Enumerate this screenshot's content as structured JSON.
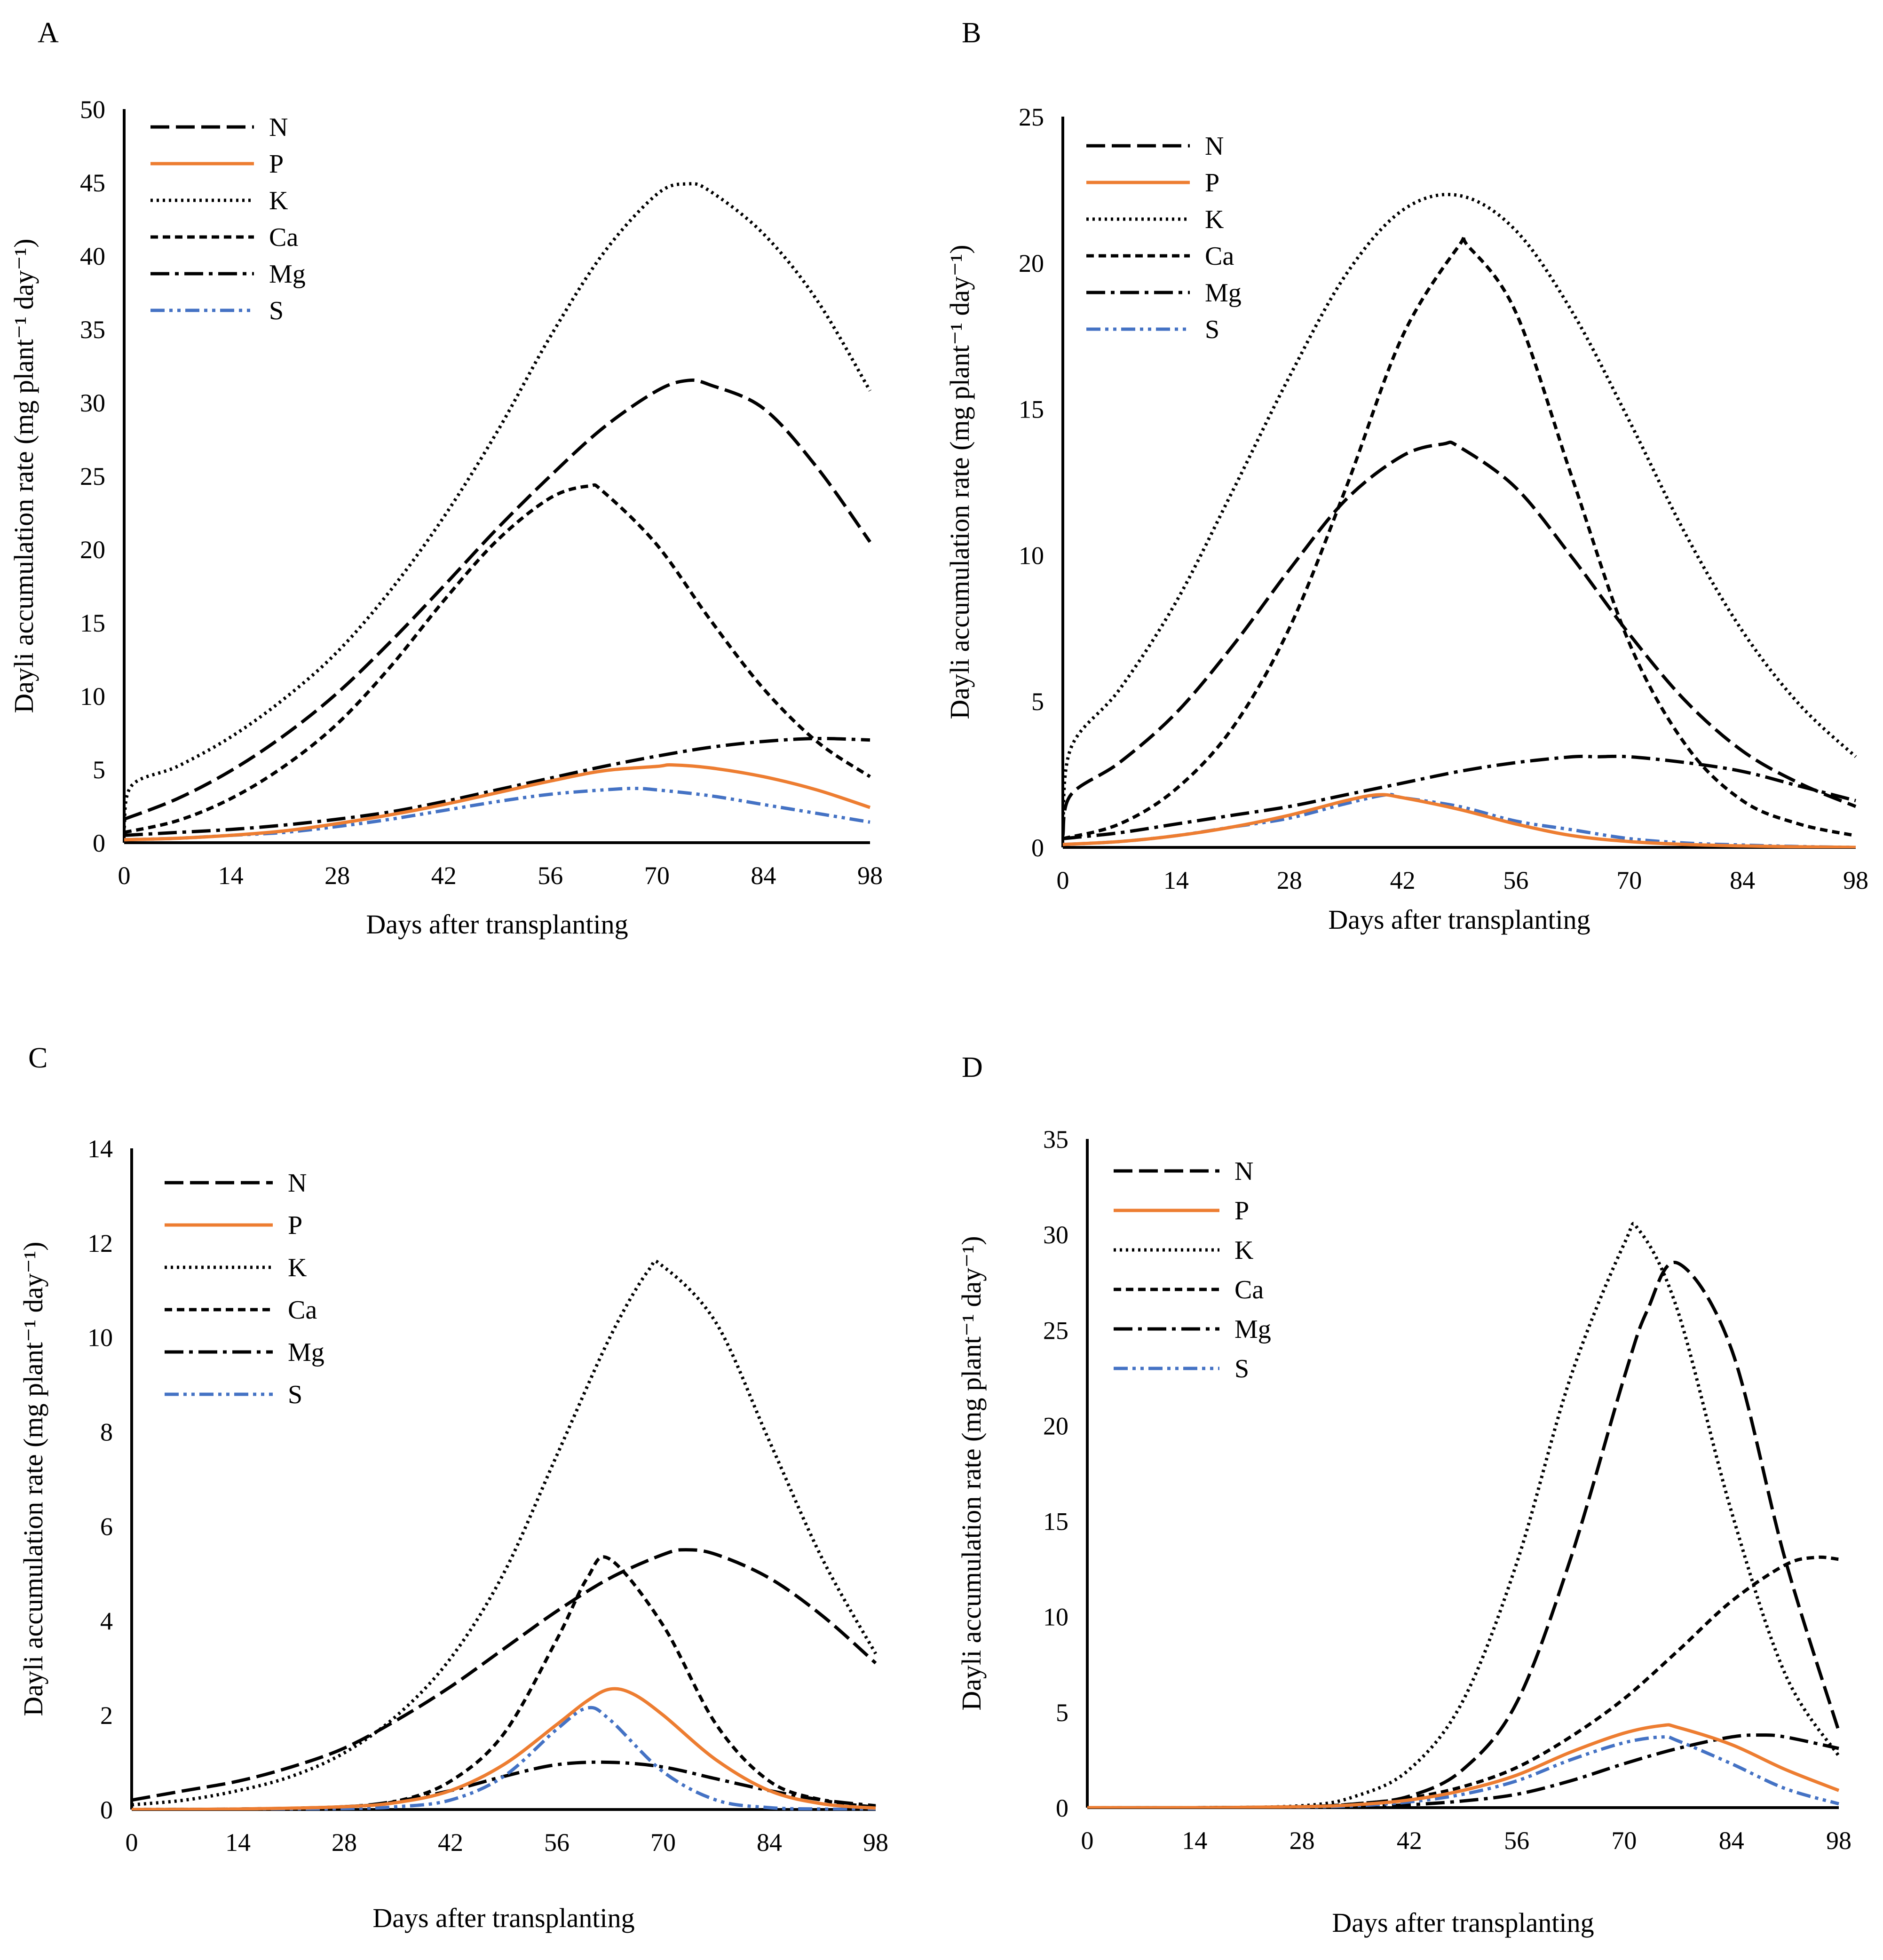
{
  "figure": {
    "panels": [
      "A",
      "B",
      "C",
      "D"
    ],
    "xlabel": "Days after transplanting",
    "ylabel": "Dayli accumulation rate (mg plant⁻¹ day⁻¹)"
  },
  "series_styles": {
    "N": {
      "color": "#000000",
      "dash": "dashed"
    },
    "P": {
      "color": "#ED7D31",
      "dash": "solid"
    },
    "K": {
      "color": "#000000",
      "dash": "dotted"
    },
    "Ca": {
      "color": "#000000",
      "dash": "short-dashed"
    },
    "Mg": {
      "color": "#000000",
      "dash": "dash-dot"
    },
    "S": {
      "color": "#4472C4",
      "dash": "dash-dot-dot"
    }
  },
  "chart_data": [
    {
      "panel": "A",
      "type": "line",
      "xlabel": "Days after transplanting",
      "ylabel": "Dayli accumulation rate (mg plant⁻¹ day⁻¹)",
      "xticks": [
        0,
        14,
        28,
        42,
        56,
        70,
        84,
        98
      ],
      "xlim": [
        0,
        98
      ],
      "yticks": [
        0,
        5,
        10,
        15,
        20,
        25,
        30,
        35,
        40,
        45,
        50
      ],
      "ylim": [
        0,
        50
      ],
      "legend": [
        "N",
        "P",
        "K",
        "Ca",
        "Mg",
        "S"
      ],
      "series": [
        {
          "name": "N",
          "x": [
            0,
            7,
            14,
            21,
            28,
            35,
            42,
            49,
            56,
            63,
            70,
            74,
            77,
            84,
            91,
            98
          ],
          "y": [
            1.6,
            3.0,
            4.9,
            7.3,
            10.2,
            13.7,
            17.5,
            21.4,
            25.0,
            28.3,
            30.8,
            31.5,
            31.2,
            29.6,
            25.6,
            20.5
          ]
        },
        {
          "name": "P",
          "x": [
            0,
            7,
            14,
            21,
            28,
            35,
            42,
            49,
            56,
            63,
            70,
            72,
            77,
            84,
            91,
            98
          ],
          "y": [
            0.2,
            0.3,
            0.5,
            0.8,
            1.3,
            1.9,
            2.6,
            3.4,
            4.2,
            4.9,
            5.2,
            5.3,
            5.1,
            4.5,
            3.6,
            2.4
          ]
        },
        {
          "name": "K",
          "x": [
            0,
            1,
            7,
            14,
            21,
            28,
            35,
            42,
            49,
            56,
            63,
            70,
            74,
            77,
            84,
            91,
            98
          ],
          "y": [
            1.0,
            3.9,
            5.2,
            7.2,
            9.8,
            13.0,
            17.2,
            22.2,
            28.0,
            34.5,
            40.2,
            44.2,
            44.9,
            44.4,
            41.5,
            37.0,
            30.8
          ]
        },
        {
          "name": "Ca",
          "x": [
            0,
            7,
            14,
            21,
            28,
            35,
            42,
            49,
            56,
            61,
            63,
            70,
            77,
            84,
            91,
            98
          ],
          "y": [
            0.7,
            1.5,
            3.0,
            5.2,
            8.1,
            12.0,
            16.5,
            20.6,
            23.5,
            24.3,
            23.9,
            20.3,
            15.2,
            10.5,
            6.9,
            4.5
          ]
        },
        {
          "name": "Mg",
          "x": [
            0,
            7,
            14,
            21,
            28,
            35,
            42,
            49,
            56,
            63,
            70,
            77,
            84,
            91,
            98
          ],
          "y": [
            0.5,
            0.7,
            0.9,
            1.2,
            1.6,
            2.1,
            2.8,
            3.6,
            4.4,
            5.2,
            5.9,
            6.5,
            6.9,
            7.1,
            7.0
          ]
        },
        {
          "name": "S",
          "x": [
            0,
            7,
            14,
            21,
            28,
            35,
            42,
            49,
            56,
            63,
            67,
            70,
            77,
            84,
            91,
            98
          ],
          "y": [
            0.2,
            0.3,
            0.5,
            0.7,
            1.1,
            1.6,
            2.2,
            2.8,
            3.3,
            3.6,
            3.7,
            3.6,
            3.2,
            2.6,
            2.0,
            1.4
          ]
        }
      ]
    },
    {
      "panel": "B",
      "type": "line",
      "xlabel": "Days after transplanting",
      "ylabel": "Dayli accumulation rate (mg plant⁻¹ day⁻¹)",
      "xticks": [
        0,
        14,
        28,
        42,
        56,
        70,
        84,
        98
      ],
      "xlim": [
        0,
        98
      ],
      "yticks": [
        0,
        5,
        10,
        15,
        20,
        25
      ],
      "ylim": [
        0,
        25
      ],
      "legend": [
        "N",
        "P",
        "K",
        "Ca",
        "Mg",
        "S"
      ],
      "series": [
        {
          "name": "N",
          "x": [
            0,
            1,
            7,
            14,
            21,
            28,
            35,
            42,
            47,
            49,
            56,
            63,
            70,
            77,
            84,
            91,
            98
          ],
          "y": [
            0.4,
            1.8,
            2.9,
            4.6,
            6.9,
            9.5,
            11.9,
            13.4,
            13.8,
            13.7,
            12.3,
            9.9,
            7.3,
            5.0,
            3.3,
            2.2,
            1.4
          ]
        },
        {
          "name": "P",
          "x": [
            0,
            7,
            14,
            21,
            28,
            35,
            39,
            42,
            49,
            56,
            63,
            70,
            77,
            84,
            91,
            98
          ],
          "y": [
            0.1,
            0.2,
            0.4,
            0.7,
            1.1,
            1.6,
            1.8,
            1.7,
            1.3,
            0.8,
            0.4,
            0.2,
            0.1,
            0.05,
            0.02,
            0.0
          ]
        },
        {
          "name": "K",
          "x": [
            0,
            1,
            7,
            14,
            21,
            28,
            35,
            42,
            49,
            56,
            63,
            70,
            77,
            84,
            91,
            98
          ],
          "y": [
            0.5,
            3.4,
            5.4,
            8.4,
            12.2,
            16.1,
            19.6,
            21.8,
            22.3,
            21.1,
            18.3,
            14.6,
            10.7,
            7.4,
            4.9,
            3.1
          ]
        },
        {
          "name": "Ca",
          "x": [
            0,
            7,
            14,
            21,
            28,
            35,
            42,
            49,
            50,
            56,
            63,
            70,
            77,
            84,
            91,
            98
          ],
          "y": [
            0.3,
            0.8,
            2.0,
            4.1,
            7.5,
            12.3,
            17.5,
            20.6,
            20.6,
            18.3,
            12.6,
            7.0,
            3.5,
            1.6,
            0.8,
            0.4
          ]
        },
        {
          "name": "Mg",
          "x": [
            0,
            7,
            14,
            21,
            28,
            35,
            42,
            49,
            56,
            63,
            66,
            70,
            77,
            84,
            91,
            98
          ],
          "y": [
            0.3,
            0.5,
            0.8,
            1.1,
            1.4,
            1.8,
            2.2,
            2.6,
            2.9,
            3.1,
            3.1,
            3.1,
            2.9,
            2.6,
            2.1,
            1.6
          ]
        },
        {
          "name": "S",
          "x": [
            0,
            7,
            14,
            21,
            28,
            35,
            40,
            42,
            49,
            56,
            63,
            70,
            77,
            84,
            91,
            98
          ],
          "y": [
            0.1,
            0.2,
            0.4,
            0.7,
            1.0,
            1.5,
            1.8,
            1.7,
            1.4,
            0.9,
            0.6,
            0.3,
            0.15,
            0.08,
            0.03,
            0.0
          ]
        }
      ]
    },
    {
      "panel": "C",
      "type": "line",
      "xlabel": "Days after transplanting",
      "ylabel": "Dayli accumulation rate (mg plant⁻¹ day⁻¹)",
      "xticks": [
        0,
        14,
        28,
        42,
        56,
        70,
        84,
        98
      ],
      "xlim": [
        0,
        98
      ],
      "yticks": [
        0,
        2,
        4,
        6,
        8,
        10,
        12,
        14
      ],
      "ylim": [
        0,
        14
      ],
      "legend": [
        "N",
        "P",
        "K",
        "Ca",
        "Mg",
        "S"
      ],
      "series": [
        {
          "name": "N",
          "x": [
            0,
            7,
            14,
            21,
            28,
            35,
            42,
            49,
            56,
            63,
            70,
            73,
            77,
            84,
            91,
            98
          ],
          "y": [
            0.2,
            0.4,
            0.6,
            0.9,
            1.3,
            1.9,
            2.6,
            3.4,
            4.2,
            4.9,
            5.4,
            5.5,
            5.4,
            4.9,
            4.1,
            3.1
          ]
        },
        {
          "name": "P",
          "x": [
            0,
            14,
            28,
            35,
            42,
            49,
            56,
            60,
            63,
            66,
            70,
            77,
            84,
            91,
            98
          ],
          "y": [
            0.0,
            0.01,
            0.06,
            0.15,
            0.4,
            0.95,
            1.8,
            2.3,
            2.55,
            2.45,
            2.0,
            1.05,
            0.4,
            0.12,
            0.03
          ]
        },
        {
          "name": "K",
          "x": [
            0,
            7,
            14,
            21,
            28,
            35,
            42,
            49,
            56,
            63,
            68,
            70,
            77,
            84,
            91,
            98
          ],
          "y": [
            0.1,
            0.2,
            0.4,
            0.7,
            1.2,
            2.0,
            3.2,
            5.0,
            7.5,
            10.0,
            11.4,
            11.5,
            10.3,
            7.8,
            5.3,
            3.3
          ]
        },
        {
          "name": "Ca",
          "x": [
            0,
            14,
            28,
            35,
            42,
            49,
            56,
            60,
            63,
            70,
            77,
            84,
            91,
            98
          ],
          "y": [
            0.0,
            0.01,
            0.06,
            0.18,
            0.6,
            1.6,
            3.6,
            4.9,
            5.3,
            3.9,
            1.8,
            0.6,
            0.2,
            0.05
          ]
        },
        {
          "name": "Mg",
          "x": [
            0,
            14,
            28,
            35,
            42,
            49,
            56,
            63,
            70,
            77,
            84,
            91,
            98
          ],
          "y": [
            0.0,
            0.01,
            0.06,
            0.18,
            0.4,
            0.7,
            0.95,
            1.0,
            0.9,
            0.65,
            0.4,
            0.2,
            0.08
          ]
        },
        {
          "name": "S",
          "x": [
            0,
            14,
            28,
            35,
            42,
            49,
            56,
            60,
            63,
            70,
            77,
            84,
            91,
            98
          ],
          "y": [
            0.0,
            0.0,
            0.02,
            0.06,
            0.2,
            0.7,
            1.7,
            2.15,
            1.9,
            0.8,
            0.2,
            0.04,
            0.01,
            0.0
          ]
        }
      ]
    },
    {
      "panel": "D",
      "type": "line",
      "xlabel": "Days after transplanting",
      "ylabel": "Dayli accumulation rate (mg plant⁻¹ day⁻¹)",
      "xticks": [
        0,
        14,
        28,
        42,
        56,
        70,
        84,
        98
      ],
      "xlim": [
        0,
        98
      ],
      "yticks": [
        0,
        5,
        10,
        15,
        20,
        25,
        30,
        35
      ],
      "ylim": [
        0,
        35
      ],
      "legend": [
        "N",
        "P",
        "K",
        "Ca",
        "Mg",
        "S"
      ],
      "series": [
        {
          "name": "N",
          "x": [
            0,
            14,
            28,
            35,
            42,
            49,
            56,
            63,
            70,
            73,
            77,
            84,
            91,
            98
          ],
          "y": [
            0.0,
            0.0,
            0.05,
            0.2,
            0.6,
            2.0,
            5.5,
            13.0,
            22.5,
            26.0,
            28.5,
            24.0,
            13.0,
            4.0
          ]
        },
        {
          "name": "P",
          "x": [
            0,
            14,
            28,
            35,
            42,
            49,
            56,
            63,
            70,
            75,
            77,
            84,
            91,
            98
          ],
          "y": [
            0.0,
            0.0,
            0.05,
            0.15,
            0.4,
            0.9,
            1.7,
            2.9,
            3.9,
            4.3,
            4.2,
            3.3,
            2.0,
            0.9
          ]
        },
        {
          "name": "K",
          "x": [
            0,
            14,
            28,
            35,
            42,
            49,
            56,
            63,
            70,
            72,
            77,
            84,
            91,
            98
          ],
          "y": [
            0.0,
            0.0,
            0.1,
            0.6,
            2.0,
            5.6,
            12.8,
            22.5,
            29.5,
            30.2,
            26.0,
            15.5,
            7.0,
            2.7
          ]
        },
        {
          "name": "Ca",
          "x": [
            0,
            14,
            28,
            35,
            42,
            49,
            56,
            63,
            70,
            77,
            84,
            91,
            95,
            98
          ],
          "y": [
            0.0,
            0.0,
            0.05,
            0.2,
            0.5,
            1.1,
            2.1,
            3.7,
            5.7,
            8.2,
            10.8,
            12.7,
            13.1,
            13.0
          ]
        },
        {
          "name": "Mg",
          "x": [
            0,
            14,
            28,
            35,
            42,
            49,
            56,
            63,
            70,
            77,
            84,
            88,
            91,
            98
          ],
          "y": [
            0.0,
            0.0,
            0.02,
            0.06,
            0.15,
            0.35,
            0.7,
            1.4,
            2.3,
            3.1,
            3.7,
            3.8,
            3.7,
            3.1
          ]
        },
        {
          "name": "S",
          "x": [
            0,
            14,
            28,
            35,
            42,
            49,
            56,
            63,
            70,
            75,
            77,
            84,
            91,
            98
          ],
          "y": [
            0.0,
            0.0,
            0.03,
            0.1,
            0.3,
            0.7,
            1.4,
            2.5,
            3.4,
            3.7,
            3.5,
            2.3,
            1.0,
            0.2
          ]
        }
      ]
    }
  ]
}
